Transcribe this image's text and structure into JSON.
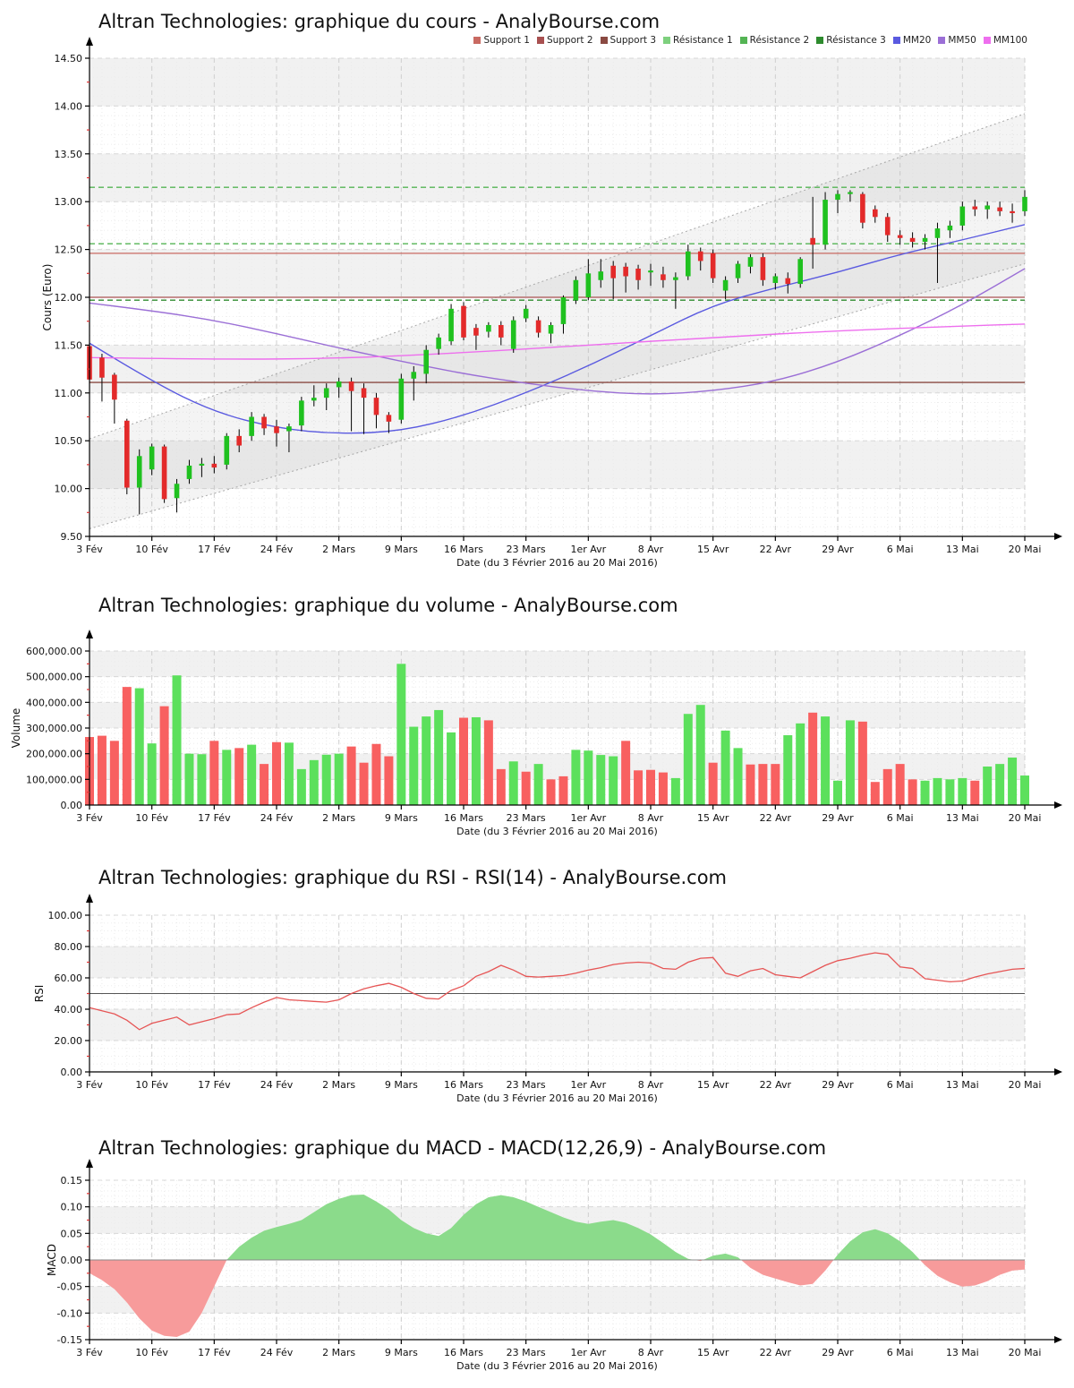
{
  "legend": [
    {
      "label": "Support 1",
      "color": "#c96a62"
    },
    {
      "label": "Support 2",
      "color": "#a85050"
    },
    {
      "label": "Support 3",
      "color": "#8a4a42"
    },
    {
      "label": "Résistance 1",
      "color": "#7ed07e"
    },
    {
      "label": "Résistance 2",
      "color": "#54b454"
    },
    {
      "label": "Résistance 3",
      "color": "#2e8b2e"
    },
    {
      "label": "MM20",
      "color": "#5a5ae0"
    },
    {
      "label": "MM50",
      "color": "#9b6fd6"
    },
    {
      "label": "MM100",
      "color": "#ee6fee"
    }
  ],
  "x_axis": {
    "caption": "Date (du 3 Février 2016 au 20 Mai 2016)",
    "tick_labels": [
      "3 Fév",
      "10 Fév",
      "17 Fév",
      "24 Fév",
      "2 Mars",
      "9 Mars",
      "16 Mars",
      "23 Mars",
      "1er Avr",
      "8 Avr",
      "15 Avr",
      "22 Avr",
      "29 Avr",
      "6 Mai",
      "13 Mai",
      "20 Mai"
    ],
    "tick_days": [
      0,
      5,
      10,
      15,
      20,
      25,
      30,
      35,
      40,
      45,
      50,
      55,
      60,
      65,
      70,
      75
    ],
    "dates": [
      "03/02",
      "04/02",
      "05/02",
      "08/02",
      "09/02",
      "10/02",
      "11/02",
      "12/02",
      "15/02",
      "16/02",
      "17/02",
      "18/02",
      "19/02",
      "22/02",
      "23/02",
      "24/02",
      "25/02",
      "26/02",
      "29/02",
      "01/03",
      "02/03",
      "03/03",
      "04/03",
      "07/03",
      "08/03",
      "09/03",
      "10/03",
      "11/03",
      "14/03",
      "15/03",
      "16/03",
      "17/03",
      "18/03",
      "21/03",
      "22/03",
      "23/03",
      "24/03",
      "29/03",
      "30/03",
      "31/03",
      "01/04",
      "04/04",
      "05/04",
      "06/04",
      "07/04",
      "08/04",
      "11/04",
      "12/04",
      "13/04",
      "14/04",
      "15/04",
      "18/04",
      "19/04",
      "20/04",
      "21/04",
      "22/04",
      "25/04",
      "26/04",
      "27/04",
      "28/04",
      "29/04",
      "02/05",
      "03/05",
      "04/05",
      "05/05",
      "06/05",
      "09/05",
      "10/05",
      "11/05",
      "12/05",
      "13/05",
      "16/05",
      "17/05",
      "18/05",
      "19/05",
      "20/05"
    ]
  },
  "chart_data": [
    {
      "id": "price",
      "type": "candlestick",
      "title": "Altran Technologies: graphique du cours - AnalyBourse.com",
      "ylabel": "Cours (Euro)",
      "ylim": [
        9.5,
        14.5
      ],
      "y_tick_labels": [
        "9.50",
        "10.00",
        "10.50",
        "11.00",
        "11.50",
        "12.00",
        "12.50",
        "13.00",
        "13.50",
        "14.00",
        "14.50"
      ],
      "colors": {
        "up": "#1fc11f",
        "down": "#e32a2a",
        "wick": "#000000"
      },
      "levels": {
        "supports": [
          {
            "name": "Support 1",
            "value": 12.46,
            "color": "#c96a62"
          },
          {
            "name": "Support 2",
            "value": 12.0,
            "color": "#a85050"
          },
          {
            "name": "Support 3",
            "value": 11.11,
            "color": "#8a4a42"
          }
        ],
        "resistances": [
          {
            "name": "Résistance 1",
            "value": 12.56,
            "color": "#54b454"
          },
          {
            "name": "Résistance 2",
            "value": 13.15,
            "color": "#54b454"
          },
          {
            "name": "Résistance 3",
            "value": 11.97,
            "color": "#2e8b2e"
          }
        ]
      },
      "channel": {
        "lower": [
          [
            0,
            9.58
          ],
          [
            75,
            12.35
          ]
        ],
        "upper": [
          [
            0,
            10.52
          ],
          [
            75,
            13.92
          ]
        ],
        "color": "#a8a8a8"
      },
      "moving_averages": [
        {
          "name": "MM20",
          "color": "#5a5ae0",
          "points": [
            [
              0,
              11.52
            ],
            [
              5,
              11.12
            ],
            [
              10,
              10.8
            ],
            [
              15,
              10.63
            ],
            [
              20,
              10.57
            ],
            [
              25,
              10.6
            ],
            [
              30,
              10.76
            ],
            [
              35,
              11.0
            ],
            [
              40,
              11.28
            ],
            [
              45,
              11.6
            ],
            [
              50,
              11.92
            ],
            [
              55,
              12.1
            ],
            [
              60,
              12.26
            ],
            [
              65,
              12.45
            ],
            [
              70,
              12.6
            ],
            [
              75,
              12.76
            ]
          ]
        },
        {
          "name": "MM50",
          "color": "#9b6fd6",
          "points": [
            [
              0,
              11.94
            ],
            [
              5,
              11.86
            ],
            [
              10,
              11.76
            ],
            [
              15,
              11.62
            ],
            [
              20,
              11.47
            ],
            [
              25,
              11.33
            ],
            [
              30,
              11.2
            ],
            [
              35,
              11.1
            ],
            [
              40,
              11.02
            ],
            [
              45,
              10.98
            ],
            [
              50,
              11.02
            ],
            [
              55,
              11.12
            ],
            [
              60,
              11.32
            ],
            [
              65,
              11.6
            ],
            [
              70,
              11.92
            ],
            [
              75,
              12.3
            ]
          ]
        },
        {
          "name": "MM100",
          "color": "#ee6fee",
          "points": [
            [
              0,
              11.37
            ],
            [
              10,
              11.35
            ],
            [
              20,
              11.36
            ],
            [
              30,
              11.42
            ],
            [
              40,
              11.5
            ],
            [
              50,
              11.58
            ],
            [
              60,
              11.65
            ],
            [
              70,
              11.7
            ],
            [
              75,
              11.72
            ]
          ]
        }
      ],
      "ohlc": [
        [
          11.49,
          11.53,
          11.04,
          11.14
        ],
        [
          11.37,
          11.41,
          10.91,
          11.16
        ],
        [
          11.19,
          11.21,
          10.68,
          10.93
        ],
        [
          10.71,
          10.73,
          9.94,
          10.01
        ],
        [
          10.01,
          10.41,
          9.73,
          10.34
        ],
        [
          10.2,
          10.47,
          10.14,
          10.44
        ],
        [
          10.44,
          10.46,
          9.85,
          9.89
        ],
        [
          9.9,
          10.1,
          9.75,
          10.05
        ],
        [
          10.1,
          10.3,
          10.05,
          10.24
        ],
        [
          10.24,
          10.32,
          10.12,
          10.26
        ],
        [
          10.26,
          10.34,
          10.16,
          10.22
        ],
        [
          10.25,
          10.58,
          10.2,
          10.55
        ],
        [
          10.55,
          10.62,
          10.38,
          10.45
        ],
        [
          10.55,
          10.8,
          10.5,
          10.75
        ],
        [
          10.75,
          10.78,
          10.56,
          10.63
        ],
        [
          10.65,
          10.72,
          10.44,
          10.58
        ],
        [
          10.6,
          10.68,
          10.38,
          10.65
        ],
        [
          10.66,
          10.96,
          10.6,
          10.92
        ],
        [
          10.92,
          11.08,
          10.86,
          10.95
        ],
        [
          10.95,
          11.1,
          10.82,
          11.05
        ],
        [
          11.06,
          11.16,
          10.95,
          11.12
        ],
        [
          11.12,
          11.16,
          10.6,
          11.02
        ],
        [
          11.05,
          11.1,
          10.57,
          10.95
        ],
        [
          10.95,
          11.0,
          10.63,
          10.77
        ],
        [
          10.77,
          10.8,
          10.58,
          10.7
        ],
        [
          10.72,
          11.2,
          10.68,
          11.15
        ],
        [
          11.15,
          11.28,
          10.92,
          11.22
        ],
        [
          11.2,
          11.5,
          11.1,
          11.45
        ],
        [
          11.46,
          11.62,
          11.4,
          11.58
        ],
        [
          11.54,
          11.93,
          11.5,
          11.88
        ],
        [
          11.91,
          11.95,
          11.55,
          11.58
        ],
        [
          11.68,
          11.72,
          11.45,
          11.6
        ],
        [
          11.64,
          11.74,
          11.58,
          11.71
        ],
        [
          11.71,
          11.75,
          11.5,
          11.58
        ],
        [
          11.46,
          11.8,
          11.42,
          11.76
        ],
        [
          11.78,
          11.92,
          11.74,
          11.88
        ],
        [
          11.76,
          11.8,
          11.58,
          11.63
        ],
        [
          11.62,
          11.74,
          11.52,
          11.71
        ],
        [
          11.72,
          12.02,
          11.62,
          12.0
        ],
        [
          11.97,
          12.22,
          11.93,
          12.18
        ],
        [
          12.0,
          12.4,
          11.97,
          12.25
        ],
        [
          12.18,
          12.4,
          12.1,
          12.27
        ],
        [
          12.33,
          12.38,
          11.98,
          12.2
        ],
        [
          12.32,
          12.36,
          12.05,
          12.22
        ],
        [
          12.3,
          12.34,
          12.08,
          12.18
        ],
        [
          12.26,
          12.35,
          12.12,
          12.28
        ],
        [
          12.24,
          12.32,
          12.1,
          12.18
        ],
        [
          12.18,
          12.26,
          11.88,
          12.21
        ],
        [
          12.22,
          12.55,
          12.18,
          12.48
        ],
        [
          12.48,
          12.52,
          12.28,
          12.38
        ],
        [
          12.46,
          12.5,
          12.15,
          12.2
        ],
        [
          12.07,
          12.22,
          11.98,
          12.18
        ],
        [
          12.2,
          12.38,
          12.15,
          12.35
        ],
        [
          12.32,
          12.45,
          12.25,
          12.42
        ],
        [
          12.42,
          12.46,
          12.12,
          12.18
        ],
        [
          12.15,
          12.25,
          12.08,
          12.22
        ],
        [
          12.2,
          12.26,
          12.04,
          12.14
        ],
        [
          12.14,
          12.42,
          12.1,
          12.4
        ],
        [
          12.62,
          13.05,
          12.3,
          12.55
        ],
        [
          12.55,
          13.1,
          12.5,
          13.02
        ],
        [
          13.02,
          13.12,
          12.88,
          13.08
        ],
        [
          13.08,
          13.12,
          13.0,
          13.1
        ],
        [
          13.08,
          13.1,
          12.72,
          12.78
        ],
        [
          12.92,
          12.96,
          12.78,
          12.84
        ],
        [
          12.84,
          12.88,
          12.58,
          12.65
        ],
        [
          12.65,
          12.7,
          12.55,
          12.62
        ],
        [
          12.62,
          12.68,
          12.52,
          12.58
        ],
        [
          12.58,
          12.66,
          12.5,
          12.62
        ],
        [
          12.62,
          12.78,
          12.15,
          12.72
        ],
        [
          12.7,
          12.8,
          12.62,
          12.75
        ],
        [
          12.75,
          13.0,
          12.7,
          12.95
        ],
        [
          12.95,
          13.02,
          12.85,
          12.92
        ],
        [
          12.92,
          13.0,
          12.82,
          12.96
        ],
        [
          12.94,
          13.0,
          12.85,
          12.9
        ],
        [
          12.9,
          12.98,
          12.78,
          12.88
        ],
        [
          12.9,
          13.12,
          12.85,
          13.05
        ]
      ]
    },
    {
      "id": "volume",
      "type": "bar",
      "title": "Altran Technologies: graphique du volume - AnalyBourse.com",
      "ylabel": "Volume",
      "ylim": [
        0,
        600000
      ],
      "y_tick_labels": [
        "0.00",
        "100,000.00",
        "200,000.00",
        "300,000.00",
        "400,000.00",
        "500,000.00",
        "600,000.00"
      ],
      "colors": {
        "up": "#5ce05c",
        "down": "#f86060"
      },
      "values": [
        265000,
        270000,
        250000,
        460000,
        455000,
        240000,
        385000,
        505000,
        200000,
        198000,
        250000,
        215000,
        222000,
        235000,
        160000,
        245000,
        243000,
        140000,
        175000,
        196000,
        200000,
        228000,
        165000,
        238000,
        190000,
        550000,
        305000,
        345000,
        370000,
        283000,
        340000,
        342000,
        330000,
        140000,
        170000,
        130000,
        160000,
        100000,
        112000,
        215000,
        212000,
        195000,
        190000,
        250000,
        135000,
        137000,
        127000,
        105000,
        355000,
        390000,
        165000,
        290000,
        222000,
        158000,
        160000,
        160000,
        272000,
        318000,
        360000,
        345000,
        95000,
        330000,
        325000,
        90000,
        140000,
        160000,
        100000,
        95000,
        105000,
        100000,
        105000,
        95000,
        150000,
        160000,
        185000,
        115000
      ],
      "directions": [
        "d",
        "d",
        "d",
        "d",
        "u",
        "u",
        "d",
        "u",
        "u",
        "u",
        "d",
        "u",
        "d",
        "u",
        "d",
        "d",
        "u",
        "u",
        "u",
        "u",
        "u",
        "d",
        "d",
        "d",
        "d",
        "u",
        "u",
        "u",
        "u",
        "u",
        "d",
        "u",
        "d",
        "d",
        "u",
        "d",
        "u",
        "d",
        "d",
        "u",
        "u",
        "u",
        "u",
        "d",
        "d",
        "d",
        "d",
        "u",
        "u",
        "u",
        "d",
        "u",
        "u",
        "d",
        "d",
        "d",
        "u",
        "u",
        "d",
        "u",
        "u",
        "u",
        "d",
        "d",
        "d",
        "d",
        "d",
        "u",
        "u",
        "u",
        "u",
        "d",
        "u",
        "u",
        "u",
        "u"
      ]
    },
    {
      "id": "rsi",
      "type": "line",
      "title": "Altran Technologies: graphique du RSI - RSI(14) - AnalyBourse.com",
      "ylabel": "RSI",
      "ylim": [
        0,
        100
      ],
      "y_tick_labels": [
        "0.00",
        "20.00",
        "40.00",
        "60.00",
        "80.00",
        "100.00"
      ],
      "midline": 50,
      "color": "#e65555",
      "values": [
        41,
        39,
        37,
        33,
        27,
        31,
        33,
        35,
        30,
        32,
        34,
        36.5,
        37,
        41,
        44.5,
        47.5,
        46,
        45.5,
        45,
        44.5,
        46,
        50,
        53,
        55,
        56.5,
        54,
        50,
        47,
        46.5,
        52,
        55,
        61,
        64,
        68,
        65,
        61,
        60.5,
        61,
        61.5,
        63,
        65,
        66.5,
        68.5,
        69.5,
        70,
        69.5,
        66,
        65.5,
        70,
        72.5,
        73,
        63,
        61,
        64.5,
        66,
        62,
        61,
        60,
        64,
        68,
        71,
        72.5,
        74.5,
        76,
        75,
        67,
        66,
        59.5,
        58.5,
        57.5,
        58,
        60.5,
        62.5,
        64,
        65.5,
        66
      ]
    },
    {
      "id": "macd",
      "type": "area",
      "title": "Altran Technologies: graphique du MACD - MACD(12,26,9) - AnalyBourse.com",
      "ylabel": "MACD",
      "ylim": [
        -0.15,
        0.15
      ],
      "y_tick_labels": [
        "-0.15",
        "-0.10",
        "-0.05",
        "0.00",
        "0.05",
        "0.10",
        "0.15"
      ],
      "colors": {
        "pos": "#8bdb8b",
        "neg": "#f79b9b"
      },
      "values": [
        -0.025,
        -0.038,
        -0.055,
        -0.08,
        -0.11,
        -0.133,
        -0.143,
        -0.145,
        -0.135,
        -0.1,
        -0.05,
        0.0,
        0.025,
        0.042,
        0.055,
        0.062,
        0.068,
        0.075,
        0.09,
        0.105,
        0.115,
        0.122,
        0.123,
        0.11,
        0.095,
        0.075,
        0.06,
        0.05,
        0.045,
        0.06,
        0.085,
        0.105,
        0.118,
        0.122,
        0.118,
        0.11,
        0.1,
        0.09,
        0.08,
        0.072,
        0.068,
        0.072,
        0.075,
        0.07,
        0.06,
        0.048,
        0.032,
        0.015,
        0.002,
        -0.002,
        0.008,
        0.012,
        0.005,
        -0.015,
        -0.028,
        -0.035,
        -0.042,
        -0.048,
        -0.045,
        -0.02,
        0.01,
        0.035,
        0.052,
        0.058,
        0.05,
        0.035,
        0.015,
        -0.01,
        -0.03,
        -0.042,
        -0.05,
        -0.048,
        -0.04,
        -0.028,
        -0.02,
        -0.018
      ]
    }
  ]
}
